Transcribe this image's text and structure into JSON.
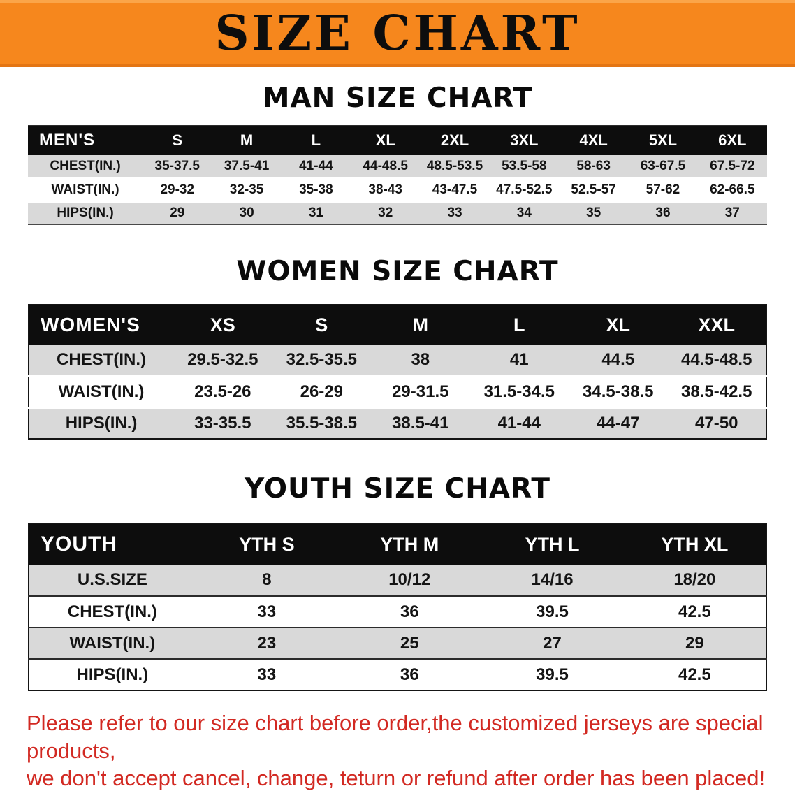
{
  "banner": {
    "title": "SIZE CHART"
  },
  "colors": {
    "banner_orange": "#f6871d",
    "table_header_black": "#0d0d0d",
    "row_gray": "#d9d9d9",
    "footer_red": "#d22922"
  },
  "sections": [
    {
      "heading": "MAN SIZE CHART",
      "table": {
        "header": [
          "MEN'S",
          "S",
          "M",
          "L",
          "XL",
          "2XL",
          "3XL",
          "4XL",
          "5XL",
          "6XL"
        ],
        "rows": [
          {
            "label": "CHEST(IN.)",
            "values": [
              "35-37.5",
              "37.5-41",
              "41-44",
              "44-48.5",
              "48.5-53.5",
              "53.5-58",
              "58-63",
              "63-67.5",
              "67.5-72"
            ]
          },
          {
            "label": "WAIST(IN.)",
            "values": [
              "29-32",
              "32-35",
              "35-38",
              "38-43",
              "43-47.5",
              "47.5-52.5",
              "52.5-57",
              "57-62",
              "62-66.5"
            ]
          },
          {
            "label": "HIPS(IN.)",
            "values": [
              "29",
              "30",
              "31",
              "32",
              "33",
              "34",
              "35",
              "36",
              "37"
            ]
          }
        ]
      }
    },
    {
      "heading": "WOMEN SIZE CHART",
      "table": {
        "header": [
          "WOMEN'S",
          "XS",
          "S",
          "M",
          "L",
          "XL",
          "XXL"
        ],
        "rows": [
          {
            "label": "CHEST(IN.)",
            "values": [
              "29.5-32.5",
              "32.5-35.5",
              "38",
              "41",
              "44.5",
              "44.5-48.5"
            ]
          },
          {
            "label": "WAIST(IN.)",
            "values": [
              "23.5-26",
              "26-29",
              "29-31.5",
              "31.5-34.5",
              "34.5-38.5",
              "38.5-42.5"
            ]
          },
          {
            "label": "HIPS(IN.)",
            "values": [
              "33-35.5",
              "35.5-38.5",
              "38.5-41",
              "41-44",
              "44-47",
              "47-50"
            ]
          }
        ]
      }
    },
    {
      "heading": "YOUTH SIZE CHART",
      "table": {
        "header": [
          "YOUTH",
          "YTH S",
          "YTH M",
          "YTH L",
          "YTH XL"
        ],
        "rows": [
          {
            "label": "U.S.SIZE",
            "values": [
              "8",
              "10/12",
              "14/16",
              "18/20"
            ]
          },
          {
            "label": "CHEST(IN.)",
            "values": [
              "33",
              "36",
              "39.5",
              "42.5"
            ]
          },
          {
            "label": "WAIST(IN.)",
            "values": [
              "23",
              "25",
              "27",
              "29"
            ]
          },
          {
            "label": "HIPS(IN.)",
            "values": [
              "33",
              "36",
              "39.5",
              "42.5"
            ]
          }
        ]
      }
    }
  ],
  "footer": {
    "line1": "Please refer to our size chart before order,the customized jerseys are special products,",
    "line2": "we don't accept cancel, change, teturn or refund after order has been placed!"
  }
}
